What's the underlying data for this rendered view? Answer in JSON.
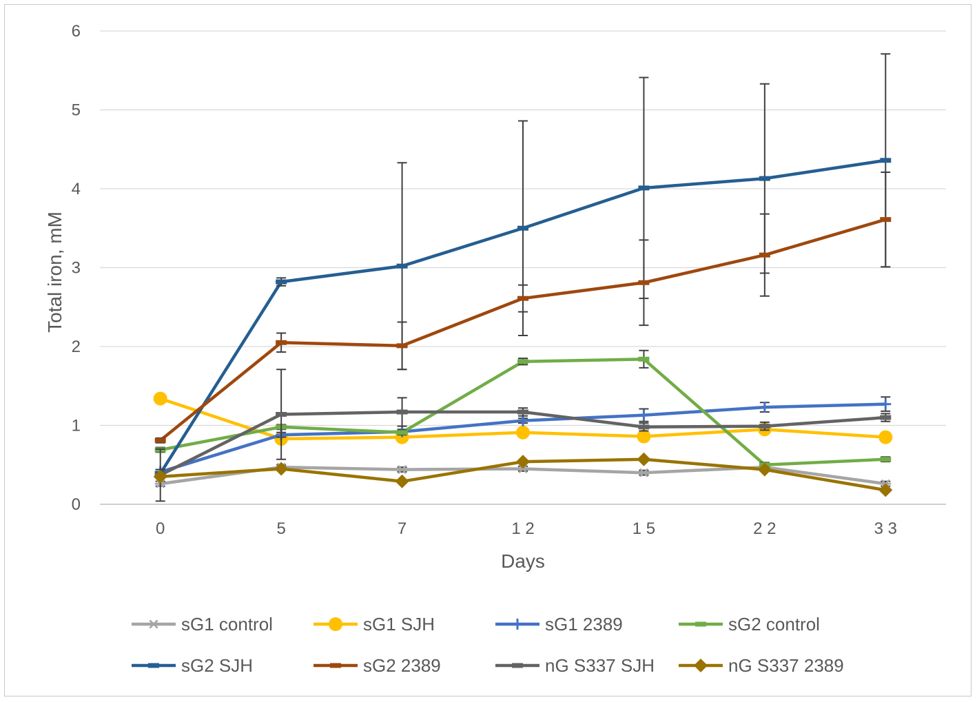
{
  "chart_data": {
    "type": "line",
    "title": "",
    "xlabel": "Days",
    "ylabel": "Total iron, mM",
    "categories": [
      "0",
      "5",
      "7",
      "1 2",
      "1 5",
      "2 2",
      "3 3"
    ],
    "ylim": [
      0,
      6
    ],
    "yticks": [
      "0",
      "1",
      "2",
      "3",
      "4",
      "5",
      "6"
    ],
    "grid": true,
    "legend_position": "bottom",
    "series": [
      {
        "name": "sG1 control",
        "color": "#a5a5a5",
        "marker": "asterisk",
        "values": [
          0.26,
          0.47,
          0.44,
          0.45,
          0.4,
          0.47,
          0.26
        ],
        "err": [
          0.03,
          0.03,
          0.03,
          0.03,
          0.03,
          0.03,
          0.03
        ]
      },
      {
        "name": "sG1 SJH",
        "color": "#ffc000",
        "marker": "circle",
        "values": [
          1.34,
          0.83,
          0.85,
          0.91,
          0.86,
          0.95,
          0.85
        ],
        "err": [
          0.03,
          0.03,
          0.03,
          0.03,
          0.03,
          0.03,
          0.03
        ]
      },
      {
        "name": "sG1 2389",
        "color": "#4472c4",
        "marker": "plus",
        "values": [
          0.41,
          0.88,
          0.92,
          1.06,
          1.13,
          1.23,
          1.27
        ],
        "err": [
          0.03,
          0.03,
          0.03,
          0.03,
          0.08,
          0.06,
          0.09
        ]
      },
      {
        "name": "sG2 control",
        "color": "#70ad47",
        "marker": "dash",
        "values": [
          0.69,
          0.98,
          0.91,
          1.81,
          1.84,
          0.5,
          0.57
        ],
        "err": [
          0.03,
          0.03,
          0.03,
          0.04,
          0.11,
          0.03,
          0.03
        ]
      },
      {
        "name": "sG2 SJH",
        "color": "#255e91",
        "marker": "dash",
        "values": [
          0.39,
          2.82,
          3.02,
          3.5,
          4.01,
          4.13,
          4.36
        ],
        "err": [
          0.05,
          0.05,
          1.31,
          1.36,
          1.4,
          1.2,
          1.35
        ]
      },
      {
        "name": "sG2 2389",
        "color": "#9e480e",
        "marker": "dash",
        "values": [
          0.81,
          2.05,
          2.01,
          2.61,
          2.81,
          3.16,
          3.61
        ],
        "err": [
          0.03,
          0.12,
          0.3,
          0.17,
          0.54,
          0.52,
          0.6
        ]
      },
      {
        "name": "nG S337 SJH",
        "color": "#636363",
        "marker": "dash",
        "values": [
          0.37,
          1.14,
          1.17,
          1.17,
          0.98,
          0.99,
          1.1
        ],
        "err": [
          0.33,
          0.57,
          0.18,
          0.05,
          0.05,
          0.05,
          0.05
        ]
      },
      {
        "name": "nG S337 2389",
        "color": "#997300",
        "marker": "diamond",
        "values": [
          0.35,
          0.45,
          0.29,
          0.54,
          0.57,
          0.44,
          0.18
        ],
        "err": [
          0.02,
          0.02,
          0.02,
          0.02,
          0.02,
          0.02,
          0.02
        ]
      }
    ]
  }
}
